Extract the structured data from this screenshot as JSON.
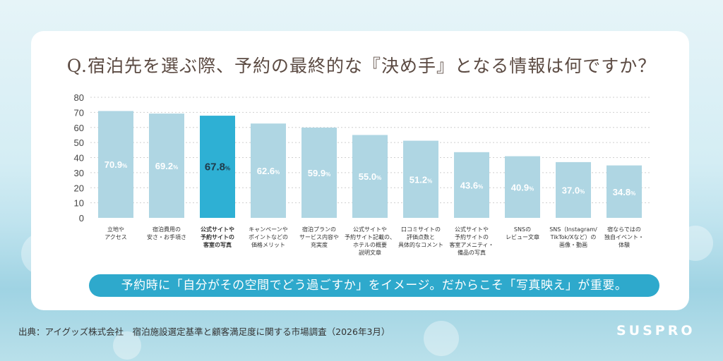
{
  "title": "Q.宿泊先を選ぶ際、予約の最終的な『決め手』となる情報は何ですか？",
  "chart_data": {
    "type": "bar",
    "categories": [
      [
        "立地や",
        "アクセス"
      ],
      [
        "宿泊費用の",
        "安さ・お手頃さ"
      ],
      [
        "公式サイトや",
        "予約サイトの",
        "客室の写真"
      ],
      [
        "キャンペーンや",
        "ポイントなどの",
        "価格メリット"
      ],
      [
        "宿泊プランの",
        "サービス内容や",
        "充実度"
      ],
      [
        "公式サイトや",
        "予約サイト記載の、",
        "ホテルの概要",
        "説明文章"
      ],
      [
        "口コミサイトの",
        "評価点数と",
        "具体的なコメント"
      ],
      [
        "公式サイトや",
        "予約サイトの",
        "客室アメニティ・",
        "備品の写真"
      ],
      [
        "SNSの",
        "レビュー文章"
      ],
      [
        "SNS（Instagram/",
        "TikTok/Xなど）の",
        "画像・動画"
      ],
      [
        "宿ならではの",
        "独自イベント・",
        "体験"
      ]
    ],
    "values": [
      70.9,
      69.2,
      67.8,
      62.6,
      59.9,
      55.0,
      51.2,
      43.6,
      40.9,
      37.0,
      34.8
    ],
    "value_labels": [
      "70.9",
      "69.2",
      "67.8",
      "62.6",
      "59.9",
      "55.0",
      "51.2",
      "43.6",
      "40.9",
      "37.0",
      "34.8"
    ],
    "unit": "%",
    "highlight_index": 2,
    "ylim": [
      0,
      80
    ],
    "yticks": [
      0,
      10,
      20,
      30,
      40,
      50,
      60,
      70,
      80
    ],
    "grid": true,
    "colors": {
      "bar": "#afd6e3",
      "highlight": "#2eb0d4",
      "grid": "#cfcfcf",
      "label": "#ffffff",
      "highlight_label": "#1f3a4a"
    }
  },
  "callout": "予約時に「自分がその空間でどう過ごすか」をイメージ。だからこそ「写真映え」が重要。",
  "source": "出典：アイグッズ株式会社　宿泊施設選定基準と顧客満足度に関する市場調査（2026年3月）",
  "brand": "SUSPRO"
}
